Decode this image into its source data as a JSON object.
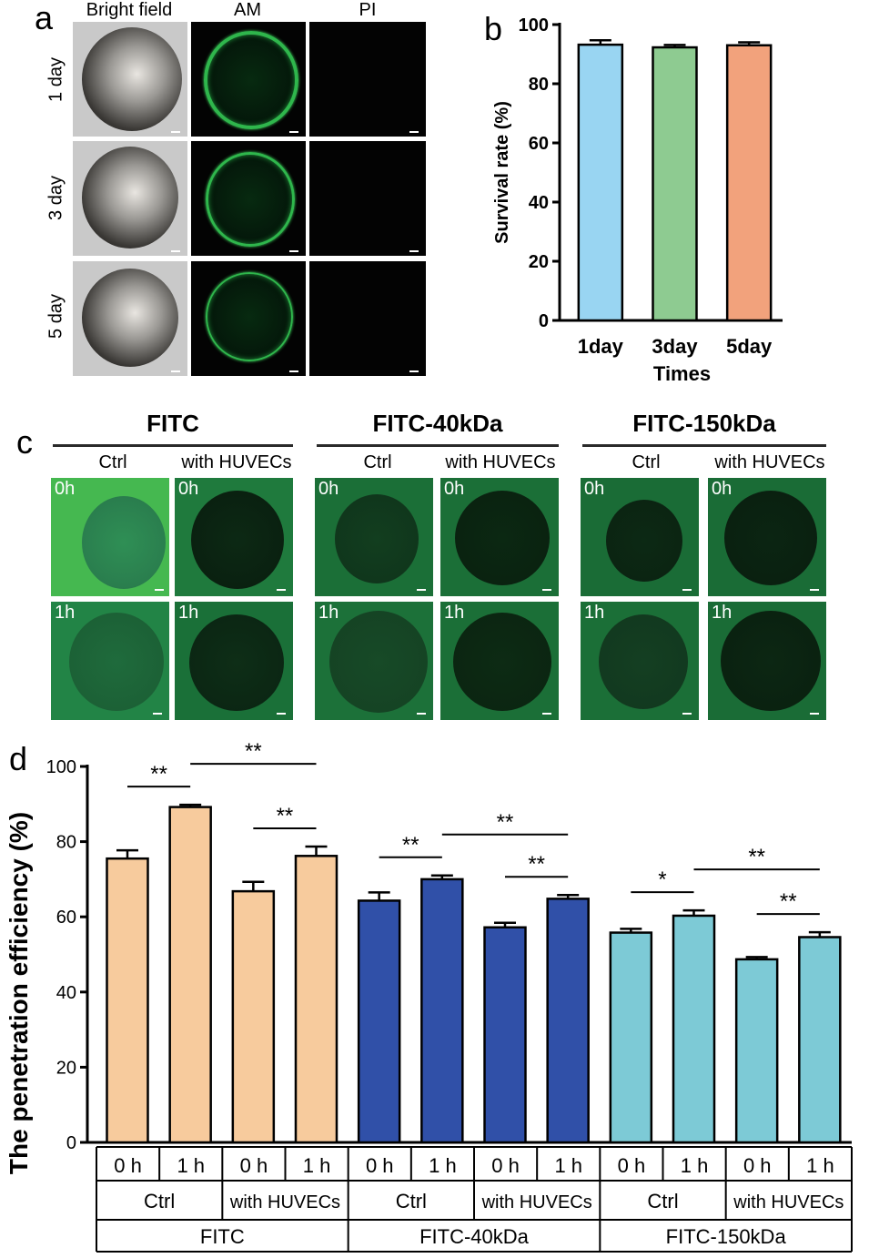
{
  "panel_a": {
    "label": "a",
    "columns": [
      "Bright field",
      "AM",
      "PI"
    ],
    "rows": [
      "1 day",
      "3 day",
      "5 day"
    ]
  },
  "panel_c": {
    "label": "c",
    "groups": [
      "FITC",
      "FITC-40kDa",
      "FITC-150kDa"
    ],
    "subcolumns": [
      "Ctrl",
      "with HUVECs"
    ],
    "times": [
      "0h",
      "1h"
    ]
  },
  "chart_data": [
    {
      "panel": "b",
      "type": "bar",
      "categories": [
        "1day",
        "3day",
        "5day"
      ],
      "values": [
        93.2,
        92.3,
        93.0
      ],
      "errors": [
        1.5,
        0.8,
        1.0
      ],
      "colors": [
        "#99d5f2",
        "#8ecb91",
        "#f2a27c"
      ],
      "ylabel": "Survival rate (%)",
      "xlabel": "Times",
      "ylim": [
        0,
        100
      ],
      "yticks": [
        0,
        20,
        40,
        60,
        80,
        100
      ]
    },
    {
      "panel": "d",
      "type": "bar",
      "ylabel": "The penetration efficiency (%)",
      "ylim": [
        0,
        100
      ],
      "yticks": [
        0,
        20,
        40,
        60,
        80,
        100
      ],
      "categories": [
        "0 h",
        "1 h",
        "0 h",
        "1 h",
        "0 h",
        "1 h",
        "0 h",
        "1 h",
        "0 h",
        "1 h",
        "0 h",
        "1 h"
      ],
      "condition_labels": [
        "Ctrl",
        "with HUVECs",
        "Ctrl",
        "with HUVECs",
        "Ctrl",
        "with HUVECs"
      ],
      "group_labels": [
        "FITC",
        "FITC-40kDa",
        "FITC-150kDa"
      ],
      "values": [
        75.5,
        89.2,
        66.8,
        76.2,
        64.3,
        70.0,
        57.2,
        64.8,
        55.8,
        60.3,
        48.7,
        54.6
      ],
      "errors": [
        2.2,
        0.6,
        2.5,
        2.5,
        2.2,
        1.0,
        1.2,
        1.0,
        1.0,
        1.4,
        0.6,
        1.3
      ],
      "colors": [
        "#f7cb9d",
        "#f7cb9d",
        "#f7cb9d",
        "#f7cb9d",
        "#3050a8",
        "#3050a8",
        "#3050a8",
        "#3050a8",
        "#7dcad6",
        "#7dcad6",
        "#7dcad6",
        "#7dcad6"
      ],
      "significance": [
        {
          "from": 0,
          "to": 1,
          "label": "**"
        },
        {
          "from": 2,
          "to": 3,
          "label": "**"
        },
        {
          "from": 1,
          "to": 3,
          "label": "**"
        },
        {
          "from": 4,
          "to": 5,
          "label": "**"
        },
        {
          "from": 6,
          "to": 7,
          "label": "**"
        },
        {
          "from": 5,
          "to": 7,
          "label": "**"
        },
        {
          "from": 8,
          "to": 9,
          "label": "*"
        },
        {
          "from": 10,
          "to": 11,
          "label": "**"
        },
        {
          "from": 9,
          "to": 11,
          "label": "**"
        }
      ]
    }
  ]
}
